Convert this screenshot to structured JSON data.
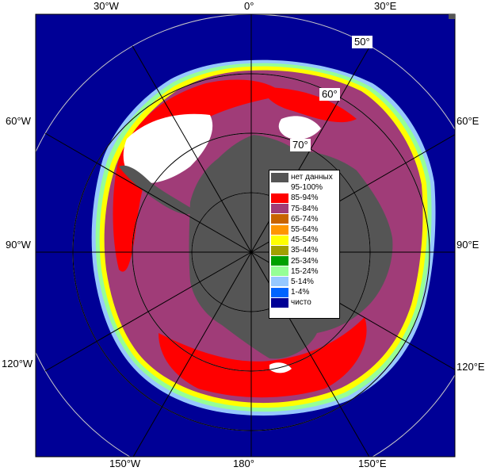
{
  "longitude_labels": {
    "top": [
      "30°W",
      "0°",
      "30°E"
    ],
    "left": [
      "60°W",
      "90°W",
      "120°W"
    ],
    "right": [
      "60°E",
      "90°E",
      "120°E"
    ],
    "bottom": [
      "150°W",
      "180°",
      "150°E"
    ]
  },
  "latitude_labels": [
    "50°",
    "60°",
    "70°"
  ],
  "legend": {
    "items": [
      {
        "label": "нет данных",
        "color": "#555555"
      },
      {
        "label": "95-100%",
        "color": "#ffffff"
      },
      {
        "label": "85-94%",
        "color": "#ff0000"
      },
      {
        "label": "75-84%",
        "color": "#a03c78"
      },
      {
        "label": "65-74%",
        "color": "#c86400"
      },
      {
        "label": "55-64%",
        "color": "#ff9600"
      },
      {
        "label": "45-54%",
        "color": "#ffff00"
      },
      {
        "label": "35-44%",
        "color": "#a0a000"
      },
      {
        "label": "25-34%",
        "color": "#00a000"
      },
      {
        "label": "15-24%",
        "color": "#96ff96"
      },
      {
        "label": "5-14%",
        "color": "#96c8ff"
      },
      {
        "label": "1-4%",
        "color": "#0064ff"
      },
      {
        "label": "чисто",
        "color": "#000096"
      }
    ]
  },
  "colors": {
    "ocean": "#000096",
    "land": "#555555",
    "ice_high": "#ff0000",
    "ice_mid": "#a03c78",
    "ice_full": "#ffffff",
    "ice_edge_yellow": "#ffff00",
    "ice_edge_green": "#96ff96",
    "ice_edge_blue": "#96c8ff"
  }
}
